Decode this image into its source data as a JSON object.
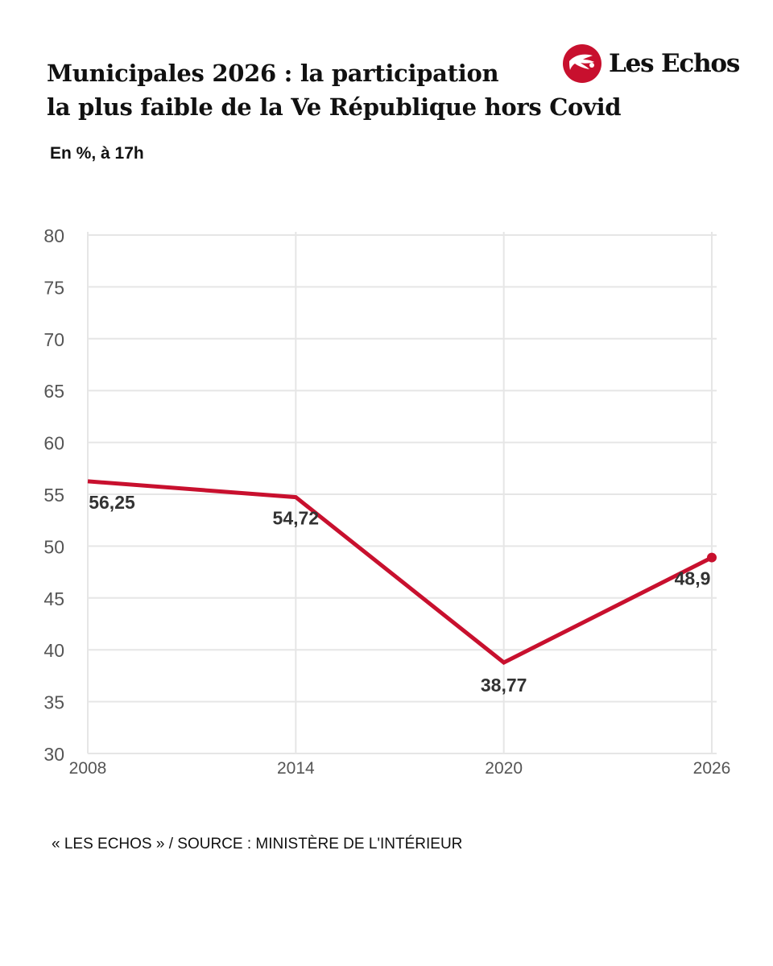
{
  "header": {
    "title_line1": "Municipales 2026 : la participation",
    "title_line2": "la plus faible de la Ve République hors Covid",
    "subtitle": "En %, à 17h",
    "logo_text": "Les Echos",
    "logo_icon": "les-echos-winged-logo"
  },
  "colors": {
    "line": "#c8102e",
    "grid": "#e6e6e6",
    "tick_text": "#555555",
    "label_text": "#333333"
  },
  "chart_data": {
    "type": "line",
    "title": "Municipales 2026 : la participation la plus faible de la Ve République hors Covid",
    "subtitle": "En %, à 17h",
    "xlabel": "",
    "ylabel": "",
    "x": [
      2008,
      2014,
      2020,
      2026
    ],
    "x_tick_labels": [
      "2008",
      "2014",
      "2020",
      "2026"
    ],
    "series": [
      {
        "values": [
          56.25,
          54.72,
          38.77,
          48.9
        ],
        "value_labels": [
          "56,25",
          "54,72",
          "38,77",
          "48,9"
        ]
      }
    ],
    "ylim": [
      30,
      80
    ],
    "y_ticks": [
      30,
      35,
      40,
      45,
      50,
      55,
      60,
      65,
      70,
      75,
      80
    ],
    "xlim": [
      2008,
      2026
    ],
    "grid": true,
    "legend": "none",
    "end_marker": true
  },
  "footer": {
    "source": "« LES ECHOS » / SOURCE : MINISTÈRE DE L'INTÉRIEUR"
  }
}
